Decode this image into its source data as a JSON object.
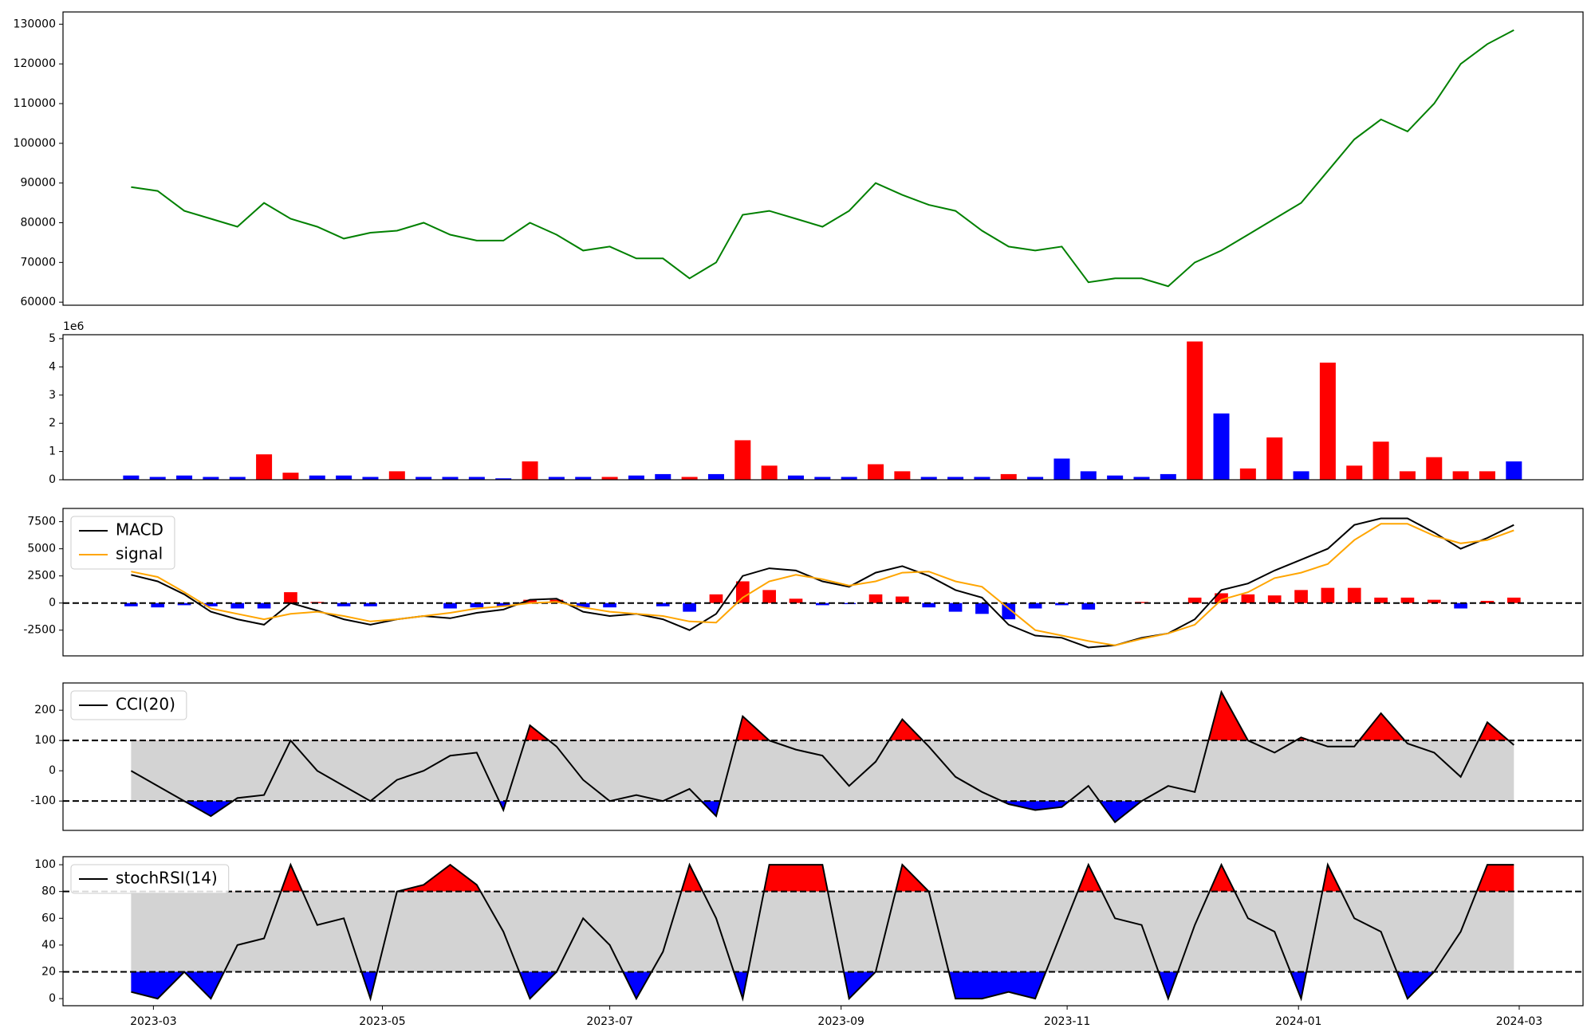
{
  "chart_data": [
    {
      "type": "line",
      "xlim": [
        -2.56,
        54.6
      ],
      "ylim": [
        59230,
        133080
      ],
      "yticks": [
        60000,
        70000,
        80000,
        90000,
        100000,
        110000,
        120000,
        130000
      ],
      "series": [
        {
          "color": "#008000",
          "values": [
            89000,
            88000,
            83000,
            81000,
            79000,
            85000,
            81000,
            79000,
            76000,
            77500,
            78000,
            80000,
            77000,
            75500,
            75500,
            80000,
            77000,
            73000,
            74000,
            71000,
            71000,
            66000,
            70000,
            82000,
            83000,
            81000,
            79000,
            83000,
            90000,
            87000,
            84500,
            83000,
            78000,
            74000,
            73000,
            74000,
            65000,
            66000,
            66000,
            64000,
            70000,
            73000,
            77000,
            81000,
            85000,
            93000,
            101000,
            106000,
            103000,
            110000,
            120000,
            125000,
            128500
          ]
        }
      ]
    },
    {
      "type": "bar",
      "xlim": [
        -2.56,
        54.6
      ],
      "ylim": [
        0,
        5.14
      ],
      "yticks": [
        0,
        1,
        2,
        3,
        4,
        5
      ],
      "offset_label": "1e6",
      "values": [
        0.15,
        0.1,
        0.15,
        0.1,
        0.1,
        0.9,
        0.25,
        0.15,
        0.15,
        0.1,
        0.3,
        0.1,
        0.1,
        0.1,
        0.05,
        0.65,
        0.1,
        0.1,
        0.1,
        0.15,
        0.2,
        0.1,
        0.2,
        1.4,
        0.5,
        0.15,
        0.1,
        0.1,
        0.55,
        0.3,
        0.1,
        0.1,
        0.1,
        0.2,
        0.1,
        0.75,
        0.3,
        0.15,
        0.1,
        0.2,
        4.9,
        2.35,
        0.4,
        1.5,
        0.3,
        4.15,
        0.5,
        1.35,
        0.3,
        0.8,
        0.3,
        0.3,
        0.65
      ],
      "colors": [
        "blue",
        "blue",
        "blue",
        "blue",
        "blue",
        "red",
        "red",
        "blue",
        "blue",
        "blue",
        "red",
        "blue",
        "blue",
        "blue",
        "blue",
        "red",
        "blue",
        "blue",
        "red",
        "blue",
        "blue",
        "red",
        "blue",
        "red",
        "red",
        "blue",
        "blue",
        "blue",
        "red",
        "red",
        "blue",
        "blue",
        "blue",
        "red",
        "blue",
        "blue",
        "blue",
        "blue",
        "blue",
        "blue",
        "red",
        "blue",
        "red",
        "red",
        "blue",
        "red",
        "red",
        "red",
        "red",
        "red",
        "red",
        "red",
        "blue"
      ]
    },
    {
      "type": "macd",
      "xlim": [
        -2.56,
        54.6
      ],
      "ylim": [
        -4870,
        8720
      ],
      "yticks": [
        -2500,
        0,
        2500,
        5000,
        7500
      ],
      "hline": 0,
      "legend": "upper left",
      "series": [
        {
          "name": "MACD",
          "color": "#000000",
          "values": [
            2600,
            2000,
            800,
            -800,
            -1500,
            -2000,
            0,
            -700,
            -1500,
            -2000,
            -1500,
            -1200,
            -1400,
            -900,
            -600,
            300,
            400,
            -800,
            -1200,
            -1000,
            -1500,
            -2500,
            -1000,
            2500,
            3200,
            3000,
            2000,
            1500,
            2800,
            3400,
            2500,
            1200,
            500,
            -2000,
            -3000,
            -3200,
            -4100,
            -3900,
            -3200,
            -2800,
            -1500,
            1200,
            1800,
            3000,
            4000,
            5000,
            7200,
            7800,
            7800,
            6500,
            5000,
            6000,
            7200
          ]
        },
        {
          "name": "signal",
          "color": "#ffa500",
          "values": [
            2900,
            2400,
            1000,
            -500,
            -1000,
            -1500,
            -1000,
            -800,
            -1200,
            -1700,
            -1500,
            -1200,
            -900,
            -500,
            -300,
            0,
            100,
            -400,
            -800,
            -1000,
            -1200,
            -1700,
            -1800,
            500,
            2000,
            2600,
            2200,
            1600,
            2000,
            2800,
            2900,
            2000,
            1500,
            -500,
            -2500,
            -3000,
            -3500,
            -3900,
            -3300,
            -2800,
            -2000,
            300,
            1000,
            2300,
            2800,
            3600,
            5800,
            7300,
            7300,
            6200,
            5500,
            5800,
            6700
          ]
        }
      ],
      "histogram": {
        "up_color": "#ff0000",
        "down_color": "#0000ff",
        "values": [
          -300,
          -400,
          -200,
          -300,
          -500,
          -500,
          1000,
          100,
          -300,
          -300,
          0,
          0,
          -500,
          -400,
          -300,
          300,
          300,
          -400,
          -400,
          0,
          -300,
          -800,
          800,
          2000,
          1200,
          400,
          -200,
          -100,
          800,
          600,
          -400,
          -800,
          -1000,
          -1500,
          -500,
          -200,
          -600,
          0,
          100,
          0,
          500,
          900,
          800,
          700,
          1200,
          1400,
          1400,
          500,
          500,
          300,
          -500,
          200,
          500
        ]
      }
    },
    {
      "type": "band",
      "xlim": [
        -2.56,
        54.6
      ],
      "ylim": [
        -197,
        290
      ],
      "yticks": [
        -100,
        0,
        100,
        200
      ],
      "thresholds": [
        -100,
        100
      ],
      "band_color": "#d3d3d3",
      "upper_color": "#ff0000",
      "lower_color": "#0000ff",
      "legend": "upper left",
      "series": [
        {
          "name": "CCI(20)",
          "color": "#000000",
          "values": [
            0,
            -50,
            -100,
            -150,
            -90,
            -80,
            100,
            0,
            -50,
            -100,
            -30,
            0,
            50,
            60,
            -130,
            150,
            80,
            -30,
            -100,
            -80,
            -100,
            -60,
            -150,
            180,
            100,
            70,
            50,
            -50,
            30,
            170,
            80,
            -20,
            -70,
            -110,
            -130,
            -120,
            -50,
            -170,
            -100,
            -50,
            -70,
            260,
            100,
            60,
            110,
            80,
            80,
            190,
            90,
            60,
            -20,
            160,
            85
          ]
        }
      ]
    },
    {
      "type": "band",
      "xlim": [
        -2.56,
        54.6
      ],
      "ylim": [
        -5.3,
        106
      ],
      "yticks": [
        0,
        20,
        40,
        60,
        80,
        100
      ],
      "thresholds": [
        20,
        80
      ],
      "band_color": "#d3d3d3",
      "upper_color": "#ff0000",
      "lower_color": "#0000ff",
      "legend": "upper left",
      "series": [
        {
          "name": "stochRSI(14)",
          "color": "#000000",
          "values": [
            5,
            0,
            20,
            0,
            40,
            45,
            100,
            55,
            60,
            0,
            80,
            85,
            100,
            85,
            50,
            0,
            20,
            60,
            40,
            0,
            35,
            100,
            60,
            0,
            100,
            100,
            100,
            0,
            20,
            100,
            80,
            0,
            0,
            5,
            0,
            50,
            100,
            60,
            55,
            0,
            55,
            100,
            60,
            50,
            0,
            100,
            60,
            50,
            0,
            20,
            50,
            100,
            100
          ]
        }
      ],
      "xticks": [
        {
          "value": 0.84,
          "label": "2023-03"
        },
        {
          "value": 9.45,
          "label": "2023-05"
        },
        {
          "value": 18.0,
          "label": "2023-07"
        },
        {
          "value": 26.7,
          "label": "2023-09"
        },
        {
          "value": 35.2,
          "label": "2023-11"
        },
        {
          "value": 43.9,
          "label": "2024-01"
        },
        {
          "value": 52.2,
          "label": "2024-03"
        }
      ]
    }
  ]
}
